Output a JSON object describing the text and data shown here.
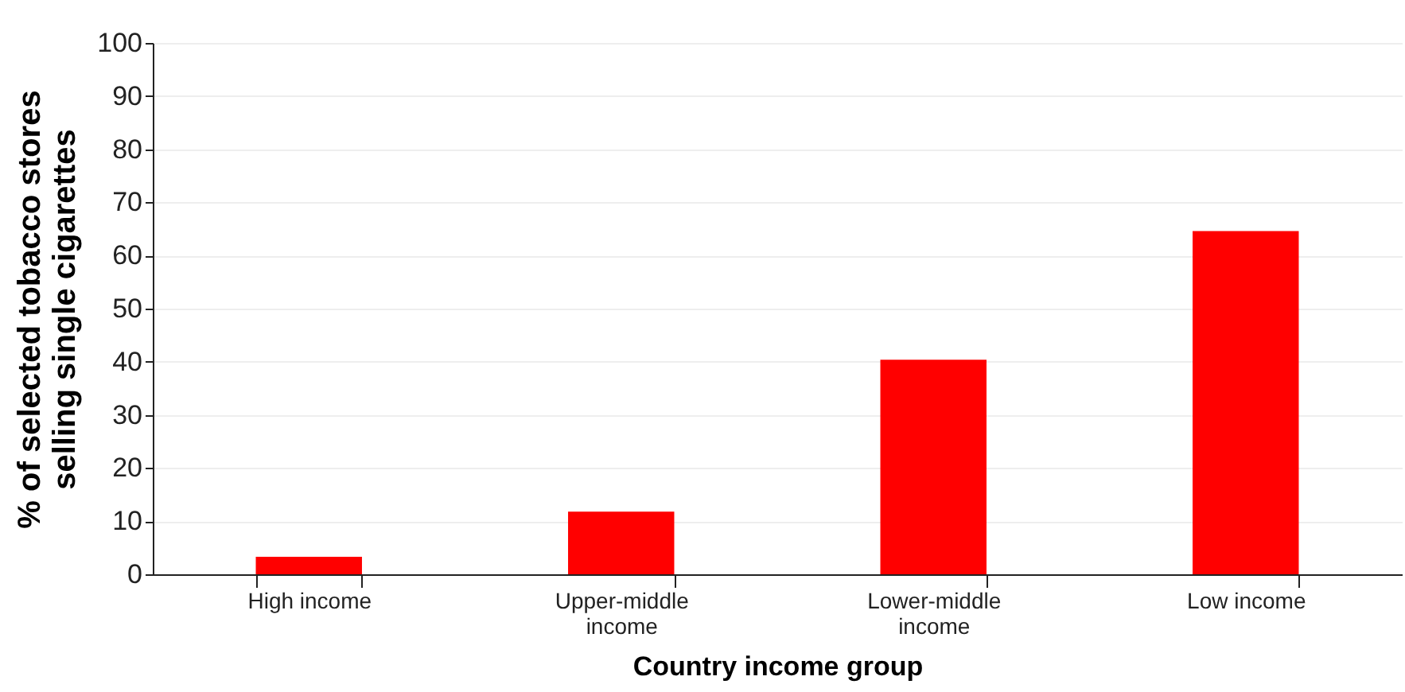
{
  "chart_data": {
    "type": "bar",
    "xlabel": "Country income group",
    "ylabel": "% of selected tobacco stores selling single cigarettes",
    "categories": [
      "High income",
      "Upper-middle income",
      "Lower-middle income",
      "Low income"
    ],
    "values": [
      3.3,
      11.8,
      40.4,
      64.6
    ],
    "color": "#ff0000",
    "ylim": [
      0,
      100
    ],
    "yticks": [
      0,
      10,
      20,
      30,
      40,
      50,
      60,
      70,
      80,
      90,
      100
    ],
    "grid": "y"
  }
}
